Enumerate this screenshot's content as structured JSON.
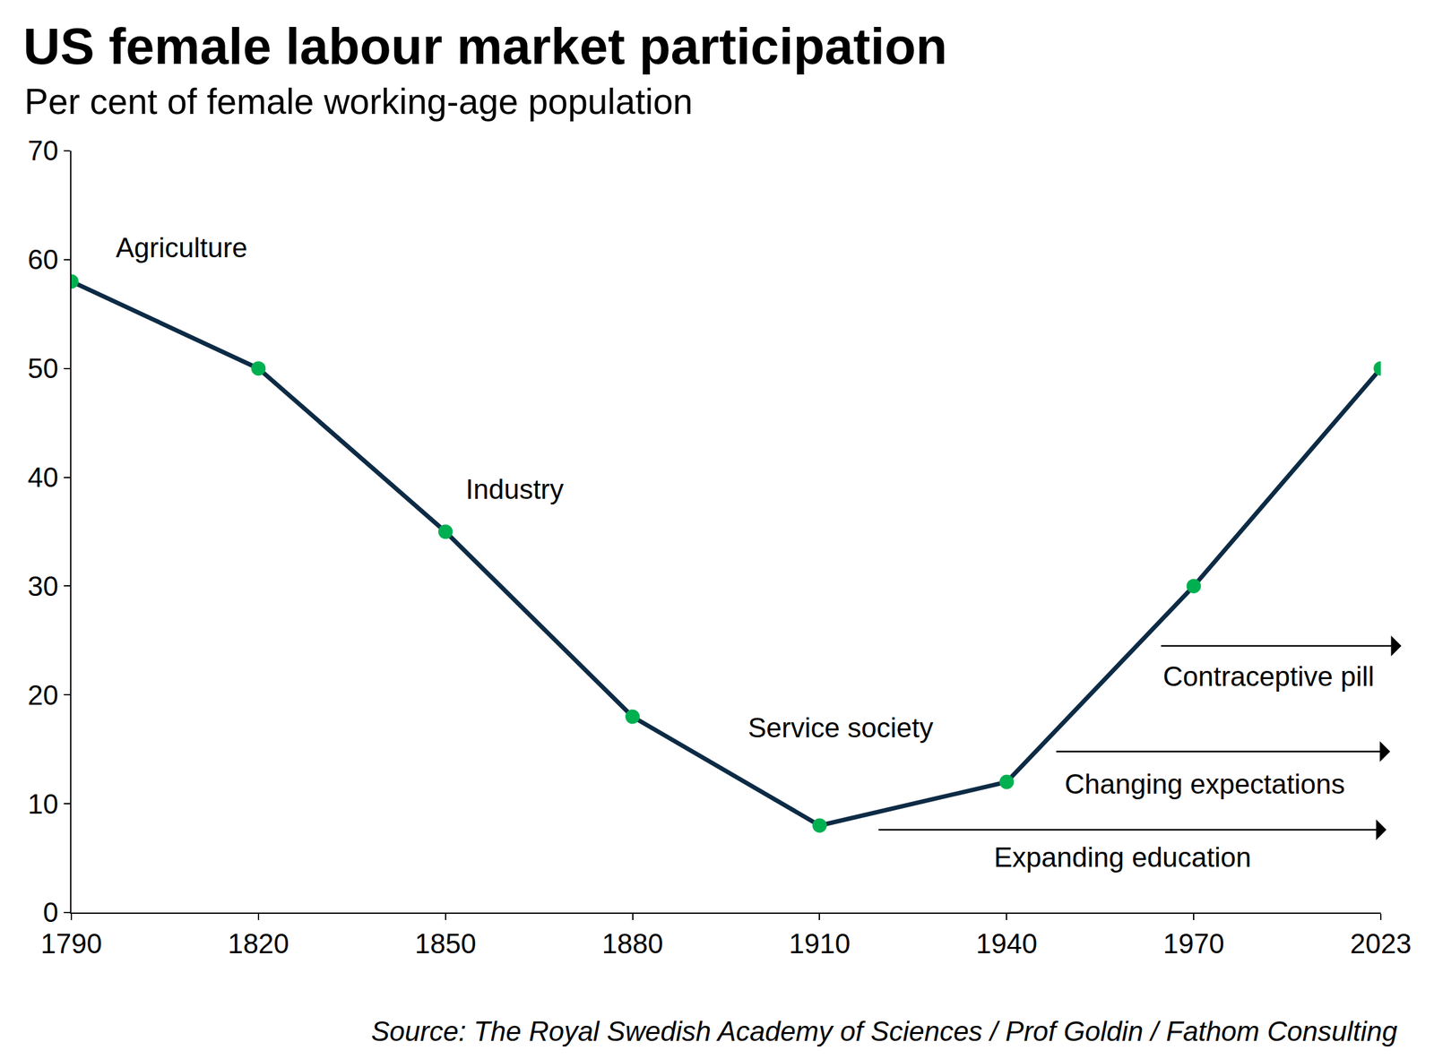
{
  "chart_data": {
    "type": "line",
    "title": "US female labour market participation",
    "subtitle": "Per cent of female working-age population",
    "source": "Source: The Royal Swedish Academy of Sciences / Prof Goldin / Fathom Consulting",
    "categories": [
      "1790",
      "1820",
      "1850",
      "1880",
      "1910",
      "1940",
      "1970",
      "2023"
    ],
    "series": [
      {
        "name": "US female labour market participation",
        "color": "#0d2b45",
        "marker": "circle",
        "colors": [
          "#00b050",
          "#00b050",
          "#00b050",
          "#00b050",
          "#00b050",
          "#00b050",
          "#00b050",
          "#00b050"
        ],
        "values": [
          58,
          50,
          35,
          18,
          8,
          12,
          30,
          50
        ]
      }
    ],
    "ylim": [
      0,
      70
    ],
    "yticks": [
      0,
      10,
      20,
      30,
      40,
      50,
      60,
      70
    ],
    "grid": false,
    "annotations": [
      {
        "text": "Agriculture"
      },
      {
        "text": "Industry"
      },
      {
        "text": "Service society"
      },
      {
        "text": "Contraceptive pill"
      },
      {
        "text": "Changing expectations"
      },
      {
        "text": "Expanding education"
      }
    ]
  }
}
